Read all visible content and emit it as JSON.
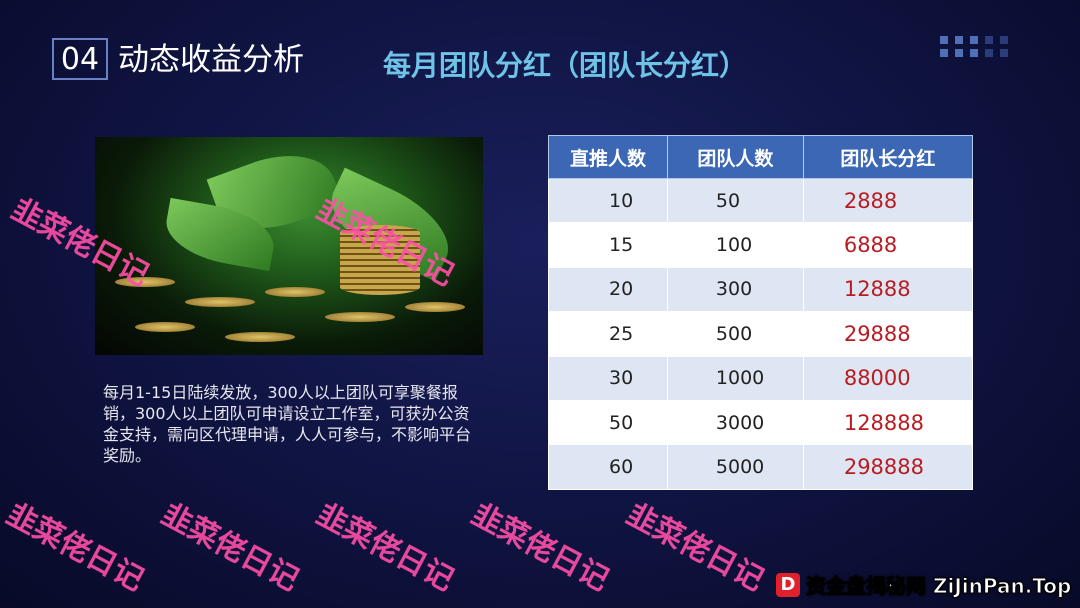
{
  "header": {
    "section_number": "04",
    "section_title": "动态收益分析",
    "subtitle": "每月团队分红（团队长分红）"
  },
  "description": "每月1-15日陆续发放，300人以上团队可享聚餐报销，300人以上团队可申请设立工作室，可获办公资金支持，需向区代理申请，人人可参与，不影响平台奖励。",
  "table": {
    "headers": [
      "直推人数",
      "团队人数",
      "团队长分红"
    ],
    "rows": [
      [
        "10",
        "50",
        "2888"
      ],
      [
        "15",
        "100",
        "6888"
      ],
      [
        "20",
        "300",
        "12888"
      ],
      [
        "25",
        "500",
        "29888"
      ],
      [
        "30",
        "1000",
        "88000"
      ],
      [
        "50",
        "3000",
        "128888"
      ],
      [
        "60",
        "5000",
        "298888"
      ]
    ]
  },
  "watermark": "韭菜佬日记",
  "site_badge": {
    "logo": "D",
    "text": "资金盘揭秘网 ZiJinPan.Top"
  },
  "colors": {
    "header_bg": "#3b67b5",
    "bonus_text": "#b81c22",
    "watermark": "#ff4fa8",
    "subtitle": "#6ec3e6"
  }
}
